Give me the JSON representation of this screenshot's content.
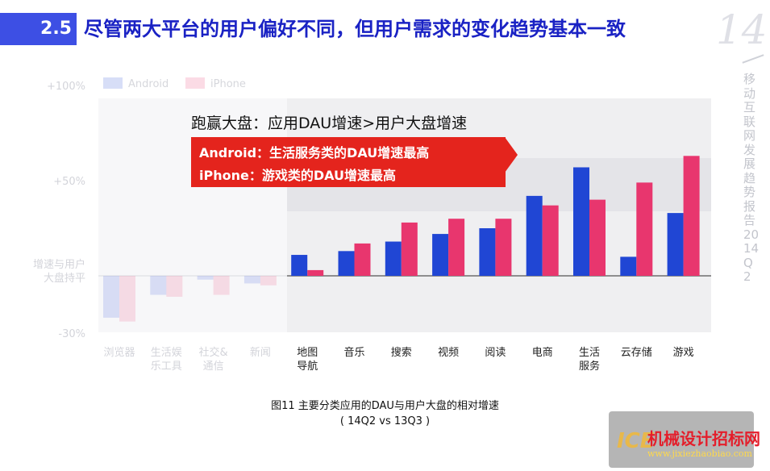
{
  "header": {
    "section": "2.5",
    "title": "尽管两大平台的用户偏好不同，但用户需求的变化趋势基本一致"
  },
  "sidebar": {
    "page_number": "14",
    "vertical_text": "移动互联网发展趋势报告 2014Q2"
  },
  "callout": {
    "title": "跑赢大盘：应用DAU增速>用户大盘增速",
    "lines": [
      "Android：生活服务类的DAU增速最高",
      "iPhone：游戏类的DAU增速最高"
    ]
  },
  "caption": {
    "line1": "图11 主要分类应用的DAU与用户大盘的相对增速",
    "line2": "( 14Q2 vs 13Q3 )"
  },
  "watermark": {
    "logo": "ICE",
    "name": "机械设计招标网",
    "url": "www.jixiezhaobiao.com"
  },
  "colors": {
    "android": "#2046d4",
    "iphone": "#e8366e",
    "header": "#3d4fe4",
    "callout": "#e4241d",
    "plot_bg": "#efeff1",
    "band": "#e4e4e8"
  },
  "chart_data": {
    "type": "bar",
    "categories": [
      "浏览器",
      "生活娱乐工具",
      "社交&通信",
      "新闻",
      "地图导航",
      "音乐",
      "搜索",
      "视频",
      "阅读",
      "电商",
      "生活服务",
      "云存储",
      "游戏"
    ],
    "category_labels": [
      [
        "浏览器"
      ],
      [
        "生活娱",
        "乐工具"
      ],
      [
        "社交&",
        "通信"
      ],
      [
        "新闻"
      ],
      [
        "地图",
        "导航"
      ],
      [
        "音乐"
      ],
      [
        "搜索"
      ],
      [
        "视频"
      ],
      [
        "阅读"
      ],
      [
        "电商"
      ],
      [
        "生活",
        "服务"
      ],
      [
        "云存储"
      ],
      [
        "游戏"
      ]
    ],
    "faded_categories": 4,
    "series": [
      {
        "name": "Android",
        "values": [
          -22,
          -10,
          -2,
          -4,
          11,
          13,
          18,
          22,
          25,
          42,
          57,
          10,
          33
        ]
      },
      {
        "name": "iPhone",
        "values": [
          -24,
          -11,
          -10,
          -5,
          3,
          17,
          28,
          30,
          30,
          37,
          40,
          49,
          63
        ]
      }
    ],
    "y_ticks": [
      {
        "value": 100,
        "label": "+100%"
      },
      {
        "value": 50,
        "label": "+50%"
      },
      {
        "value": 0,
        "label": "增速与用户大盘持平"
      },
      {
        "value": -30,
        "label": "-30%"
      }
    ],
    "ylim": [
      -30,
      100
    ],
    "legend_position": "top-left"
  }
}
